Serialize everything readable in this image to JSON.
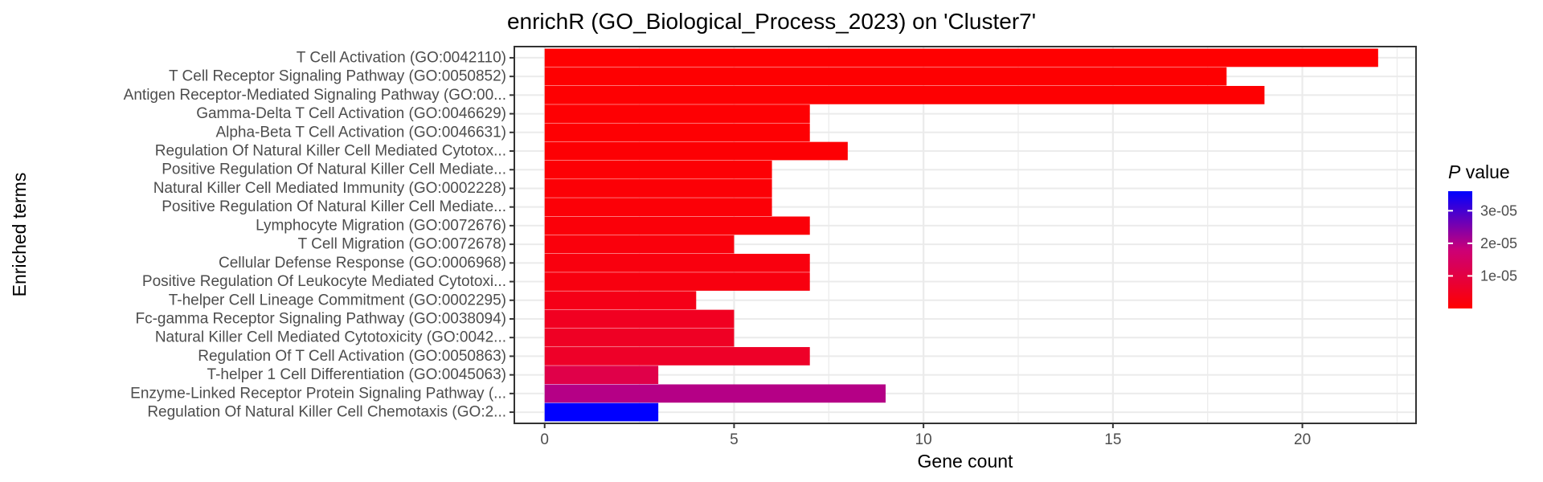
{
  "chart_data": {
    "type": "bar",
    "orientation": "horizontal",
    "title": "enrichR (GO_Biological_Process_2023) on 'Cluster7'",
    "xlabel": "Gene count",
    "ylabel": "Enriched terms",
    "xlim": [
      -0.8,
      23.0
    ],
    "xticks": [
      0,
      5,
      10,
      15,
      20
    ],
    "grid": true,
    "legend": {
      "position": "right",
      "title_italic": "P",
      "title_rest": " value",
      "range": [
        0,
        3.6e-05
      ],
      "ticks": [
        1e-05,
        2e-05,
        3e-05
      ],
      "tick_labels": [
        "1e-05",
        "2e-05",
        "3e-05"
      ],
      "low_color": "#ff0000",
      "high_color": "#0000ff"
    },
    "categories": [
      "T Cell Activation (GO:0042110)",
      "T Cell Receptor Signaling Pathway (GO:0050852)",
      "Antigen Receptor-Mediated Signaling Pathway (GO:00...",
      "Gamma-Delta T Cell Activation (GO:0046629)",
      "Alpha-Beta T Cell Activation (GO:0046631)",
      "Regulation Of Natural Killer Cell Mediated Cytotox...",
      "Positive Regulation Of Natural Killer Cell Mediate...",
      "Natural Killer Cell Mediated Immunity (GO:0002228)",
      "Positive Regulation Of Natural Killer Cell Mediate...",
      "Lymphocyte Migration (GO:0072676)",
      "T Cell Migration (GO:0072678)",
      "Cellular Defense Response (GO:0006968)",
      "Positive Regulation Of Leukocyte Mediated Cytotoxi...",
      "T-helper Cell Lineage Commitment (GO:0002295)",
      "Fc-gamma Receptor Signaling Pathway (GO:0038094)",
      "Natural Killer Cell Mediated Cytotoxicity (GO:0042...",
      "Regulation Of T Cell Activation (GO:0050863)",
      "T-helper 1 Cell Differentiation (GO:0045063)",
      "Enzyme-Linked Receptor Protein Signaling Pathway (...",
      "Regulation Of Natural Killer Cell Chemotaxis (GO:2..."
    ],
    "values": [
      22,
      18,
      19,
      7,
      7,
      8,
      6,
      6,
      6,
      7,
      5,
      7,
      7,
      4,
      5,
      5,
      7,
      3,
      9,
      3
    ],
    "p_values": [
      1e-07,
      2e-07,
      3e-07,
      4e-07,
      5e-07,
      6e-07,
      8e-07,
      9e-07,
      1e-06,
      1.3e-06,
      1.8e-06,
      2.1e-06,
      2.3e-06,
      3.5e-06,
      5e-06,
      5.5e-06,
      6e-06,
      1.1e-05,
      2e-05,
      3.6e-05
    ]
  }
}
